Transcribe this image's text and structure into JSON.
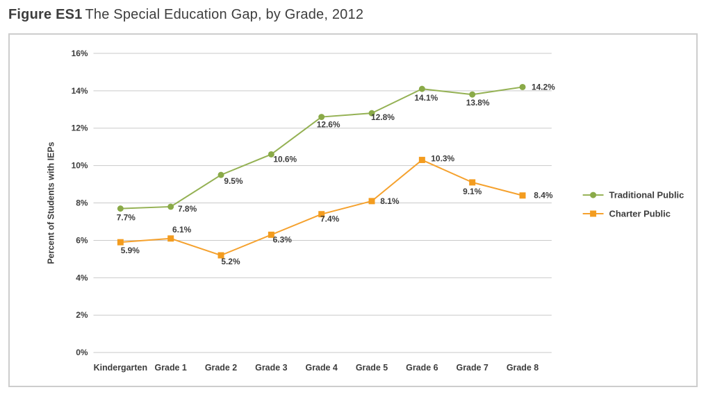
{
  "title": {
    "prefix": "Figure ES1",
    "text": "The Special Education Gap, by Grade, 2012"
  },
  "chart_data": {
    "type": "line",
    "categories": [
      "Kindergarten",
      "Grade 1",
      "Grade 2",
      "Grade 3",
      "Grade 4",
      "Grade 5",
      "Grade 6",
      "Grade 7",
      "Grade 8"
    ],
    "series": [
      {
        "name": "Traditional Public",
        "color": "#94b153",
        "marker_color": "#8aaa48",
        "marker": "circle",
        "values": [
          7.7,
          7.8,
          9.5,
          10.6,
          12.6,
          12.8,
          14.1,
          13.8,
          14.2
        ]
      },
      {
        "name": "Charter Public",
        "color": "#f5a12d",
        "marker_color": "#f39c1f",
        "marker": "square",
        "values": [
          5.9,
          6.1,
          5.2,
          6.3,
          7.4,
          8.1,
          10.3,
          9.1,
          8.4
        ]
      }
    ],
    "xlabel": "",
    "ylabel": "Percent of Students with IEPs",
    "ylim": [
      0,
      16
    ],
    "ytick_step": 2,
    "ytick_suffix": "%",
    "value_label_suffix": "%",
    "grid": true,
    "legend_position": "right",
    "gridline_color": "#c9c9c9",
    "text_color": "#3c3c3c",
    "label_offsets": [
      [
        [
          8,
          17
        ],
        [
          24,
          7
        ],
        [
          18,
          13
        ],
        [
          20,
          11
        ],
        [
          10,
          15
        ],
        [
          16,
          10
        ],
        [
          6,
          17
        ],
        [
          8,
          16
        ],
        [
          30,
          4
        ]
      ],
      [
        [
          14,
          16
        ],
        [
          16,
          -9
        ],
        [
          14,
          13
        ],
        [
          16,
          11
        ],
        [
          12,
          11
        ],
        [
          26,
          4
        ],
        [
          30,
          2
        ],
        [
          0,
          17
        ],
        [
          30,
          4
        ]
      ]
    ]
  }
}
